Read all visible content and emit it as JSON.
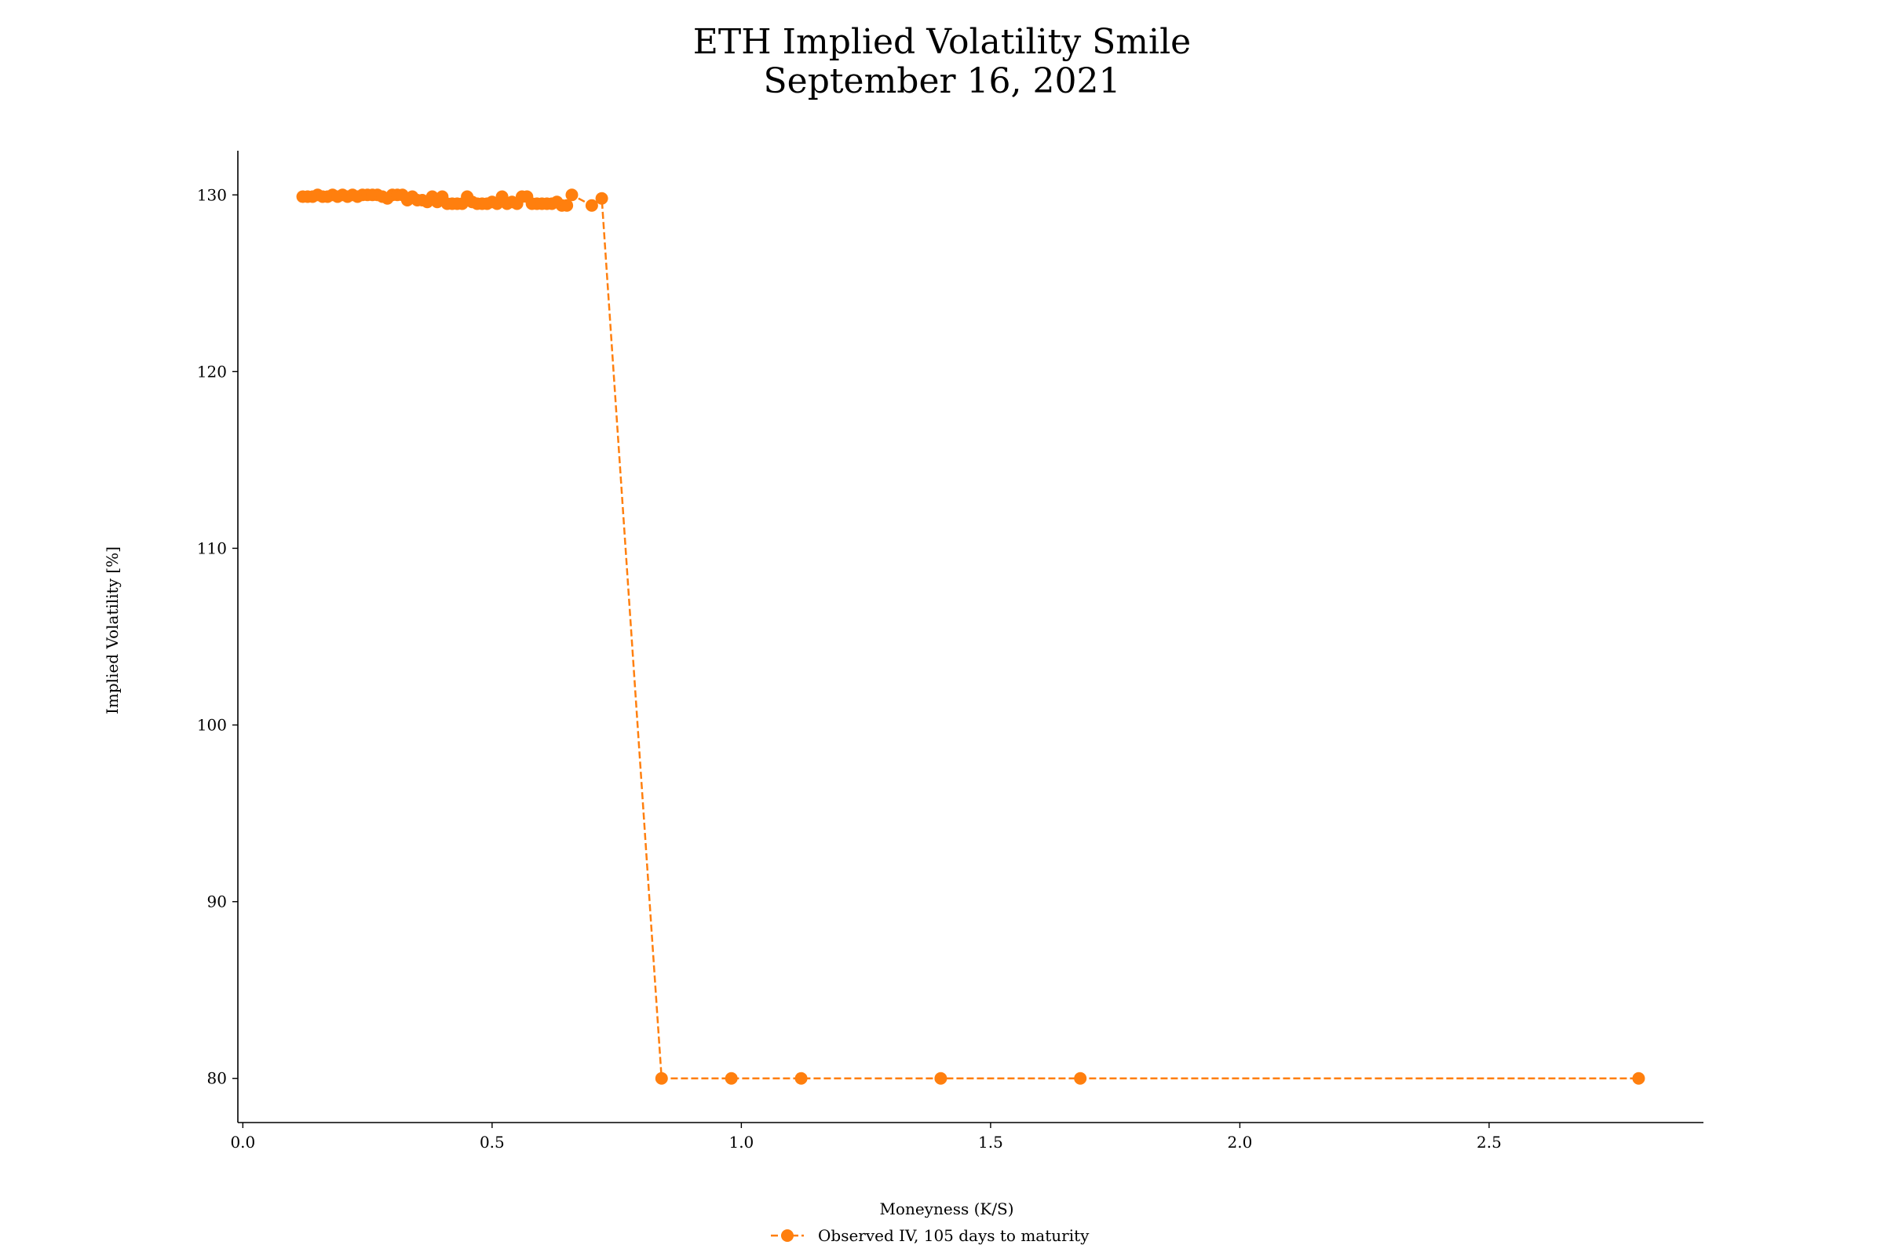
{
  "chart_data": {
    "type": "line",
    "title": "ETH Implied Volatility Smile",
    "subtitle": "September 16, 2021",
    "xlabel": "Moneyness (K/S)",
    "ylabel": "Implied Volatility [%]",
    "xlim": [
      -0.01,
      2.93
    ],
    "ylim": [
      77.5,
      132.5
    ],
    "xticks": [
      0.0,
      0.5,
      1.0,
      1.5,
      2.0,
      2.5
    ],
    "xtick_labels": [
      "0.0",
      "0.5",
      "1.0",
      "1.5",
      "2.0",
      "2.5"
    ],
    "yticks": [
      80,
      90,
      100,
      110,
      120,
      130
    ],
    "ytick_labels": [
      "80",
      "90",
      "100",
      "110",
      "120",
      "130"
    ],
    "grid": false,
    "legend_position": "bottom-center",
    "series": [
      {
        "name": "Observed IV, 105 days to maturity",
        "color": "#ff7f0e",
        "line_style": "dashed",
        "marker": "circle",
        "x": [
          0.12,
          0.13,
          0.14,
          0.15,
          0.16,
          0.17,
          0.18,
          0.19,
          0.2,
          0.21,
          0.22,
          0.23,
          0.24,
          0.25,
          0.26,
          0.27,
          0.28,
          0.29,
          0.3,
          0.31,
          0.32,
          0.33,
          0.34,
          0.35,
          0.36,
          0.37,
          0.38,
          0.39,
          0.4,
          0.41,
          0.42,
          0.43,
          0.44,
          0.45,
          0.46,
          0.47,
          0.48,
          0.49,
          0.5,
          0.51,
          0.52,
          0.53,
          0.54,
          0.55,
          0.56,
          0.57,
          0.58,
          0.59,
          0.6,
          0.61,
          0.62,
          0.63,
          0.64,
          0.65,
          0.66,
          0.7,
          0.72,
          0.84,
          0.98,
          1.12,
          1.4,
          1.68,
          2.8
        ],
        "y": [
          129.9,
          129.9,
          129.9,
          130.0,
          129.9,
          129.9,
          130.0,
          129.9,
          130.0,
          129.9,
          130.0,
          129.9,
          130.0,
          130.0,
          130.0,
          130.0,
          129.9,
          129.8,
          130.0,
          130.0,
          130.0,
          129.7,
          129.9,
          129.7,
          129.7,
          129.6,
          129.9,
          129.6,
          129.9,
          129.5,
          129.5,
          129.5,
          129.5,
          129.9,
          129.6,
          129.5,
          129.5,
          129.5,
          129.6,
          129.5,
          129.9,
          129.5,
          129.6,
          129.5,
          129.9,
          129.9,
          129.5,
          129.5,
          129.5,
          129.5,
          129.5,
          129.6,
          129.4,
          129.4,
          130.0,
          129.4,
          129.8,
          80.0,
          80.0,
          80.0,
          80.0,
          80.0,
          80.0
        ]
      }
    ]
  }
}
